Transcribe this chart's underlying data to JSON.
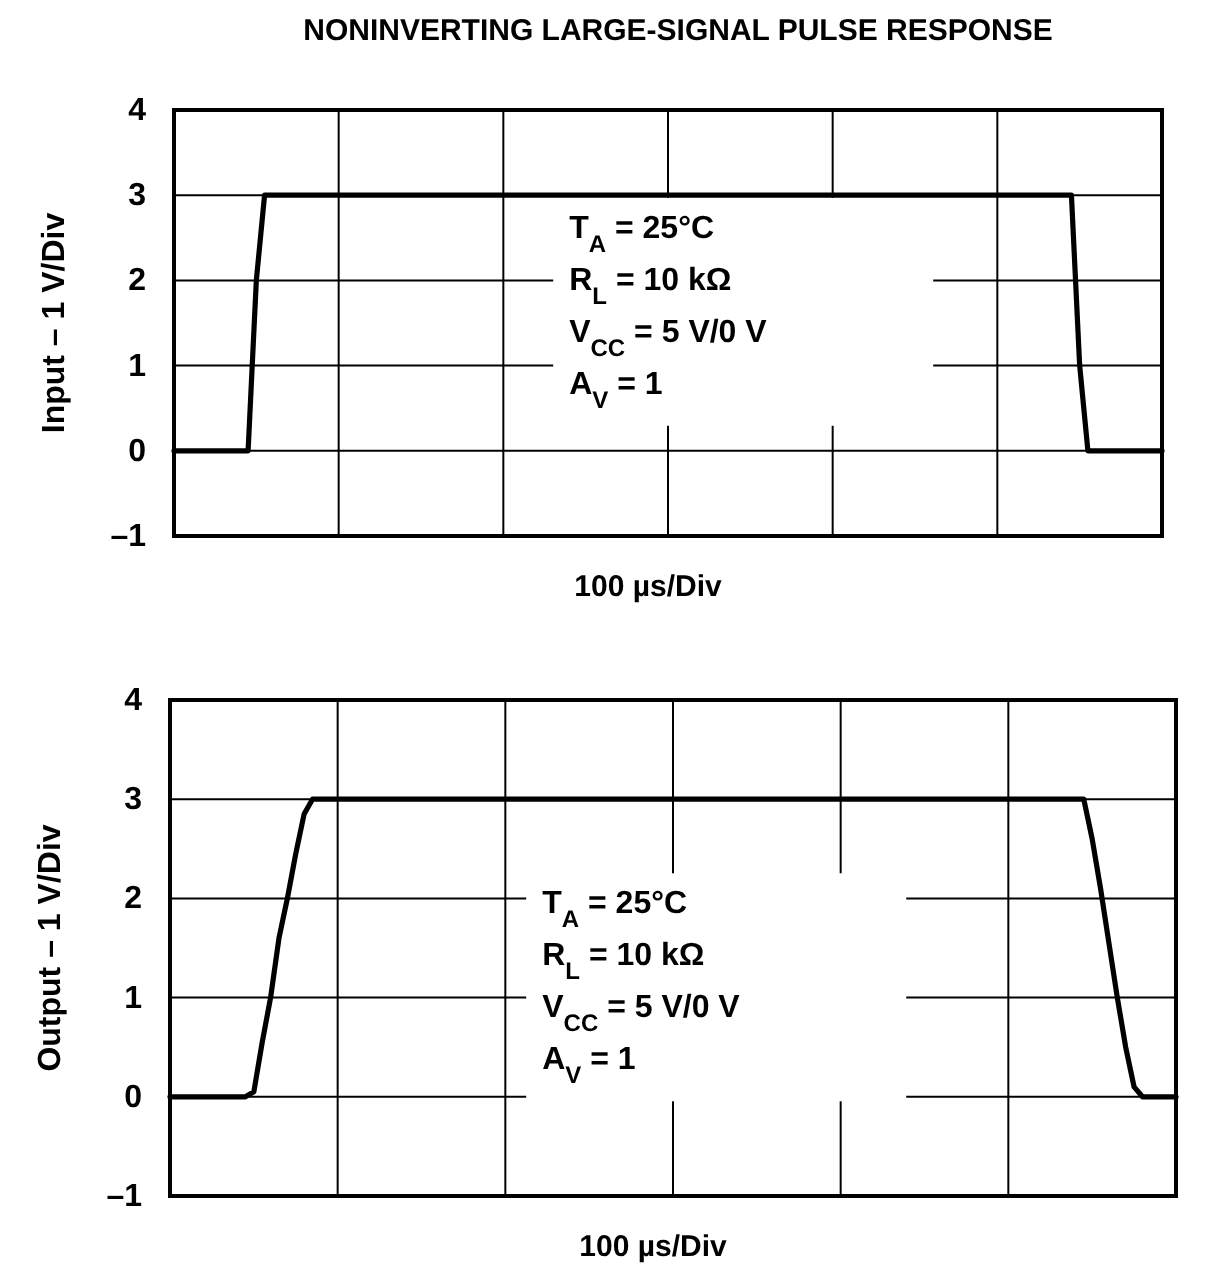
{
  "chart_data": [
    {
      "type": "line",
      "title": "NONINVERTING LARGE-SIGNAL PULSE RESPONSE",
      "xlabel": "100 µs/Div",
      "ylabel": "Input – 1 V/Div",
      "annotations": [
        "T$_{A}$ = 25°C",
        "R$_{L}$ = 10 kΩ",
        "V$_{CC}$ = 5 V/0 V",
        "A$_{V}$ = 1"
      ],
      "categories": [
        null,
        null,
        null,
        null,
        null,
        null,
        null,
        null,
        null,
        null,
        null,
        null,
        null,
        null,
        null,
        null,
        null,
        null,
        null,
        null,
        null,
        null,
        null,
        null,
        null,
        null,
        null,
        null,
        null,
        null,
        null,
        null,
        null,
        null,
        null,
        null,
        null,
        null,
        null,
        null,
        null,
        null,
        null,
        null,
        null,
        null,
        null,
        null,
        null,
        null,
        null,
        null,
        null,
        null,
        null,
        null,
        null,
        null,
        null,
        null,
        null,
        null,
        null,
        null,
        null,
        null,
        null,
        null,
        null,
        null,
        null,
        null,
        null,
        null,
        null,
        null,
        null,
        null,
        null,
        null,
        null,
        null,
        null,
        null,
        null,
        null,
        null,
        null,
        null,
        null,
        null,
        null,
        null,
        null,
        null,
        null,
        null,
        null,
        null,
        null,
        null,
        null,
        null,
        null,
        null,
        null,
        null,
        null,
        null,
        null,
        null,
        null,
        null,
        null,
        null,
        null,
        null,
        null,
        null,
        null,
        null
      ],
      "ylim": [
        -1,
        4
      ],
      "yticks": [
        {
          "value": -1,
          "label": "–1"
        },
        0,
        1,
        2,
        3,
        4
      ],
      "grid": true,
      "tick_labels": "y",
      "series": [
        {
          "color": "#000000",
          "values": [
            0,
            0,
            0,
            0,
            0,
            0,
            0,
            0,
            0,
            0,
            2,
            3,
            3,
            3,
            3,
            3,
            3,
            3,
            3,
            3,
            3,
            3,
            3,
            3,
            3,
            3,
            3,
            3,
            3,
            3,
            3,
            3,
            3,
            3,
            3,
            3,
            3,
            3,
            3,
            3,
            3,
            3,
            3,
            3,
            3,
            3,
            3,
            3,
            3,
            3,
            3,
            3,
            3,
            3,
            3,
            3,
            3,
            3,
            3,
            3,
            3,
            3,
            3,
            3,
            3,
            3,
            3,
            3,
            3,
            3,
            3,
            3,
            3,
            3,
            3,
            3,
            3,
            3,
            3,
            3,
            3,
            3,
            3,
            3,
            3,
            3,
            3,
            3,
            3,
            3,
            3,
            3,
            3,
            3,
            3,
            3,
            3,
            3,
            3,
            3,
            3,
            3,
            3,
            3,
            3,
            3,
            3,
            3,
            3,
            3,
            1,
            0,
            0,
            0,
            0,
            0,
            0,
            0,
            0,
            0,
            0
          ]
        }
      ]
    },
    {
      "type": "line",
      "xlabel": "100 µs/Div",
      "ylabel": "Output – 1 V/Div",
      "annotations": [
        "T$_{A}$ = 25°C",
        "R$_{L}$ = 10 kΩ",
        "V$_{CC}$ = 5 V/0 V",
        "A$_{V}$ = 1"
      ],
      "categories": [
        null,
        null,
        null,
        null,
        null,
        null,
        null,
        null,
        null,
        null,
        null,
        null,
        null,
        null,
        null,
        null,
        null,
        null,
        null,
        null,
        null,
        null,
        null,
        null,
        null,
        null,
        null,
        null,
        null,
        null,
        null,
        null,
        null,
        null,
        null,
        null,
        null,
        null,
        null,
        null,
        null,
        null,
        null,
        null,
        null,
        null,
        null,
        null,
        null,
        null,
        null,
        null,
        null,
        null,
        null,
        null,
        null,
        null,
        null,
        null,
        null,
        null,
        null,
        null,
        null,
        null,
        null,
        null,
        null,
        null,
        null,
        null,
        null,
        null,
        null,
        null,
        null,
        null,
        null,
        null,
        null,
        null,
        null,
        null,
        null,
        null,
        null,
        null,
        null,
        null,
        null,
        null,
        null,
        null,
        null,
        null,
        null,
        null,
        null,
        null,
        null,
        null,
        null,
        null,
        null,
        null,
        null,
        null,
        null,
        null,
        null,
        null,
        null,
        null,
        null,
        null,
        null,
        null,
        null,
        null,
        null
      ],
      "ylim": [
        -1,
        4
      ],
      "yticks": [
        {
          "value": -1,
          "label": "–1"
        },
        0,
        1,
        2,
        3,
        4
      ],
      "grid": true,
      "tick_labels": "y",
      "series": [
        {
          "color": "#000000",
          "values": [
            0,
            0,
            0,
            0,
            0,
            0,
            0,
            0,
            0,
            0,
            0.05,
            0.55,
            1.0,
            1.6,
            2.0,
            2.45,
            2.85,
            3,
            3,
            3,
            3,
            3,
            3,
            3,
            3,
            3,
            3,
            3,
            3,
            3,
            3,
            3,
            3,
            3,
            3,
            3,
            3,
            3,
            3,
            3,
            3,
            3,
            3,
            3,
            3,
            3,
            3,
            3,
            3,
            3,
            3,
            3,
            3,
            3,
            3,
            3,
            3,
            3,
            3,
            3,
            3,
            3,
            3,
            3,
            3,
            3,
            3,
            3,
            3,
            3,
            3,
            3,
            3,
            3,
            3,
            3,
            3,
            3,
            3,
            3,
            3,
            3,
            3,
            3,
            3,
            3,
            3,
            3,
            3,
            3,
            3,
            3,
            3,
            3,
            3,
            3,
            3,
            3,
            3,
            3,
            3,
            3,
            3,
            3,
            3,
            3,
            3,
            3,
            3,
            3,
            2.6,
            2.1,
            1.55,
            1.0,
            0.5,
            0.1,
            0,
            0,
            0,
            0,
            0
          ]
        }
      ]
    }
  ]
}
